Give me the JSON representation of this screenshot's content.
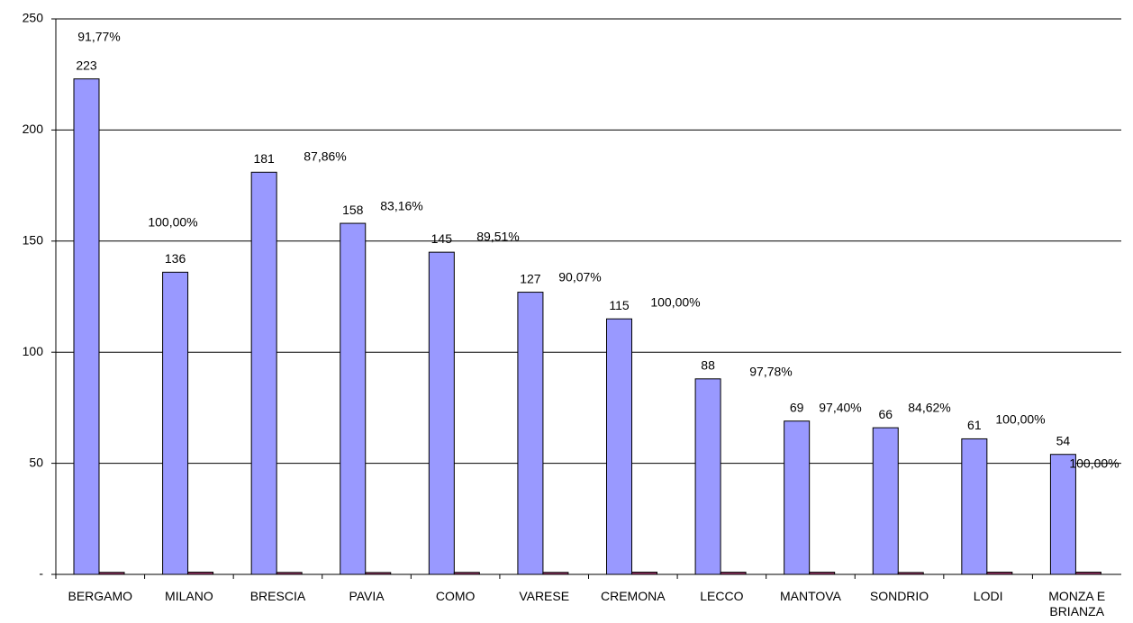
{
  "chart_data": {
    "type": "bar",
    "categories": [
      "BERGAMO",
      "MILANO",
      "BRESCIA",
      "PAVIA",
      "COMO",
      "VARESE",
      "CREMONA",
      "LECCO",
      "MANTOVA",
      "SONDRIO",
      "LODI",
      "MONZA E BRIANZA"
    ],
    "series": [
      {
        "color": "#9999ff",
        "values": [
          223,
          136,
          181,
          158,
          145,
          127,
          115,
          88,
          69,
          66,
          61,
          54
        ]
      },
      {
        "color": "#993366",
        "values": [
          0.9177,
          1,
          0.8786,
          0.8316,
          0.8951,
          0.9007,
          1,
          0.9778,
          0.974,
          0.8462,
          1,
          1
        ],
        "value_labels": [
          "91,77%",
          "100,00%",
          "87,86%",
          "83,16%",
          "89,51%",
          "90,07%",
          "100,00%",
          "97,78%",
          "97,40%",
          "84,62%",
          "100,00%",
          "100,00%"
        ]
      }
    ],
    "ylim": [
      0,
      250
    ],
    "yticks": [
      {
        "value": 0,
        "label": "-"
      },
      50,
      100,
      150,
      200,
      250
    ],
    "grid": true
  }
}
